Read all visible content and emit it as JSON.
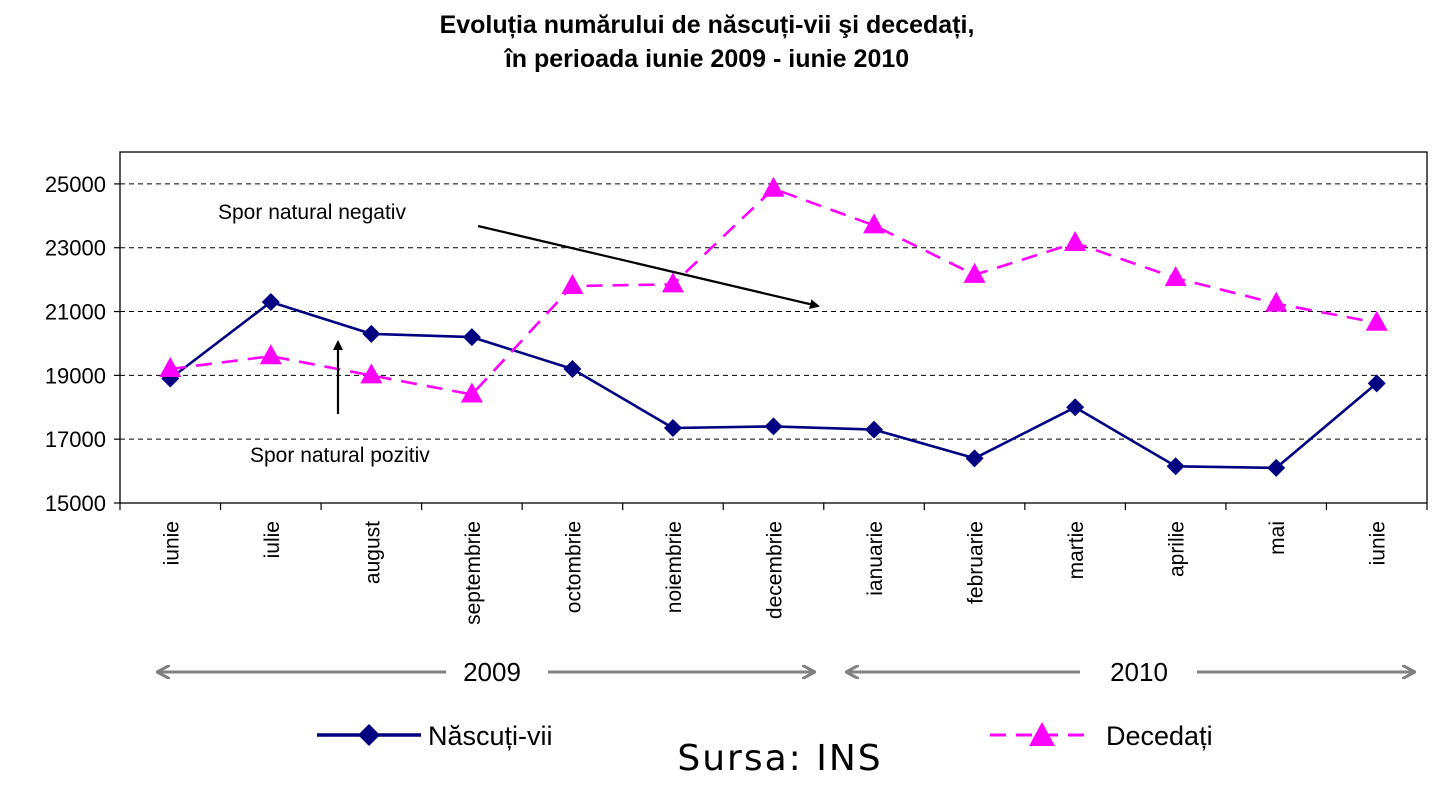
{
  "chart_data": {
    "type": "line",
    "title": "Evoluția numărului de născuți-vii şi decedați,",
    "subtitle": "în perioada iunie 2009 - iunie 2010",
    "categories": [
      "iunie",
      "iulie",
      "august",
      "septembrie",
      "octombrie",
      "noiembrie",
      "decembrie",
      "ianuarie",
      "februarie",
      "martie",
      "aprilie",
      "mai",
      "iunie"
    ],
    "series": [
      {
        "name": "Născuți-vii",
        "color": "#000080",
        "marker": "diamond",
        "dash": false,
        "values": [
          18900,
          21300,
          20300,
          20200,
          19200,
          17350,
          17400,
          17300,
          16400,
          18000,
          16150,
          16100,
          18750
        ]
      },
      {
        "name": "Decedați",
        "color": "#FF00FF",
        "marker": "triangle",
        "dash": true,
        "values": [
          19200,
          19600,
          19000,
          18400,
          21800,
          21850,
          24850,
          23700,
          22150,
          23150,
          22050,
          21250,
          20650
        ]
      }
    ],
    "ylim": [
      15000,
      26000
    ],
    "yticks": [
      "15000",
      "17000",
      "19000",
      "21000",
      "23000",
      "25000"
    ],
    "grid": "horizontal dashed",
    "legend_position": "bottom",
    "years": [
      {
        "label": "2009",
        "from": "iunie",
        "to": "decembrie"
      },
      {
        "label": "2010",
        "from": "ianuarie",
        "to": "iunie"
      }
    ],
    "annotations": [
      {
        "text": "Spor natural negativ"
      },
      {
        "text": "Spor natural pozitiv"
      }
    ],
    "source": "Sursa: INS"
  }
}
